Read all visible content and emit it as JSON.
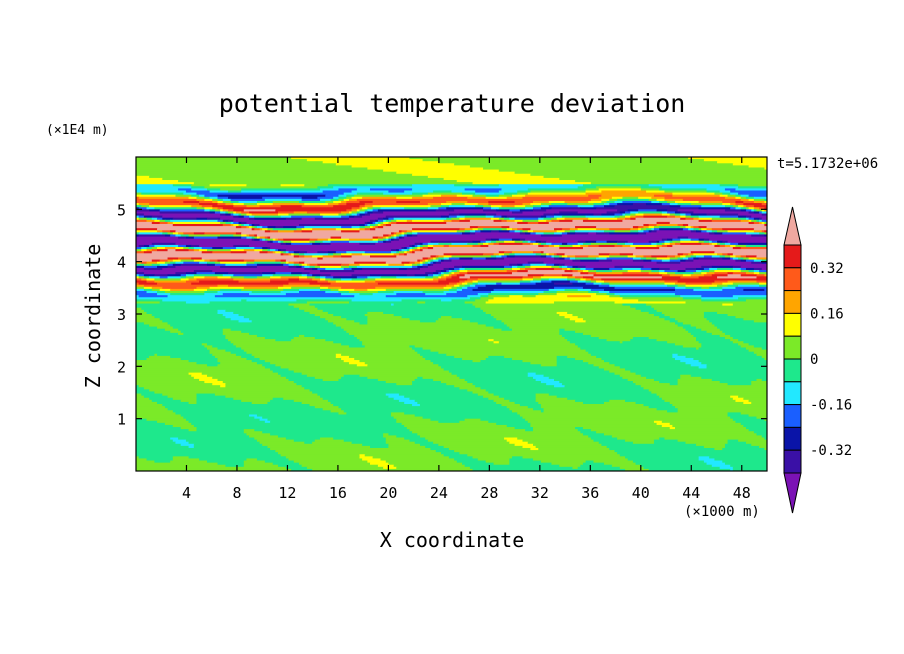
{
  "chart_data": {
    "type": "heatmap",
    "title": "potential temperature deviation",
    "xlabel": "X coordinate",
    "ylabel": "Z coordinate",
    "x_unit": "(×1000 m)",
    "y_unit": "(×1E4 m)",
    "time_label": "t=5.1732e+06",
    "xlim": [
      0,
      50
    ],
    "ylim": [
      0,
      6
    ],
    "x_ticks": [
      4,
      8,
      12,
      16,
      20,
      24,
      28,
      32,
      36,
      40,
      44,
      48
    ],
    "y_ticks": [
      1,
      2,
      3,
      4,
      5
    ],
    "colorbar": {
      "levels": [
        -0.4,
        -0.32,
        -0.24,
        -0.16,
        -0.08,
        0,
        0.08,
        0.16,
        0.24,
        0.32,
        0.4
      ],
      "colors": [
        "#7b12b5",
        "#3a10a6",
        "#0a14a8",
        "#1a5fff",
        "#22e8ff",
        "#1ee88c",
        "#7bea28",
        "#ffff00",
        "#ffa500",
        "#ff5a1a",
        "#e51a1a",
        "#f0a8a0"
      ],
      "tick_labels": [
        "0.32",
        "0.16",
        "0",
        "-0.16",
        "-0.32"
      ]
    },
    "bands": [
      {
        "z_min": 0,
        "z_max": 3.0,
        "description": "weak near-zero deviation (green / light green)"
      },
      {
        "z_min": 3.2,
        "z_max": 5.5,
        "description": "strong alternating positive/negative deviation layers"
      },
      {
        "z_min": 5.5,
        "z_max": 6.0,
        "description": "weak near-zero deviation (light green)"
      }
    ]
  }
}
